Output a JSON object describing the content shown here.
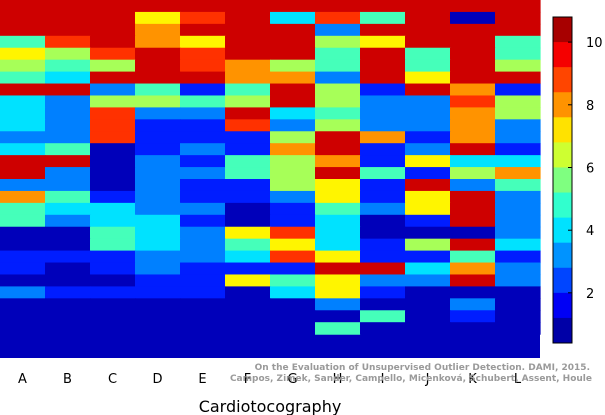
{
  "chart_data": {
    "type": "heatmap",
    "title": "",
    "xlabel": "Cardiotocography",
    "ylabel": "",
    "categories": [
      "A",
      "B",
      "C",
      "D",
      "E",
      "F",
      "G",
      "H",
      "I",
      "J",
      "K",
      "L"
    ],
    "colorbar": {
      "min": 0.4,
      "max": 10.8,
      "ticks": [
        2,
        4,
        6,
        8,
        10
      ],
      "colormap": "jet"
    },
    "citation": [
      "On the Evaluation of Unsupervised Outlier Detection. DAMI, 2015.",
      "Campos, Zimek, Sander, Campello, Micenková, Schubert, Assent, Houle"
    ],
    "rows": 28,
    "values": [
      [
        10,
        10,
        10,
        10,
        10,
        10,
        10,
        10,
        10,
        10,
        10,
        10
      ],
      [
        10,
        10,
        10,
        7,
        9,
        10,
        4,
        9,
        5,
        10,
        1,
        10
      ],
      [
        10,
        10,
        10,
        8,
        10,
        10,
        10,
        3,
        10,
        10,
        10,
        10
      ],
      [
        5,
        9,
        10,
        8,
        7,
        10,
        10,
        6,
        7,
        10,
        10,
        5
      ],
      [
        7,
        6,
        9,
        10,
        9,
        10,
        10,
        5,
        10,
        5,
        10,
        5
      ],
      [
        6,
        5,
        6,
        10,
        9,
        8,
        6,
        5,
        10,
        5,
        10,
        6
      ],
      [
        5,
        4,
        10,
        10,
        10,
        8,
        8,
        3,
        10,
        7,
        10,
        10
      ],
      [
        10,
        10,
        3,
        5,
        2,
        5,
        10,
        6,
        2,
        10,
        8,
        2
      ],
      [
        4,
        3,
        6,
        6,
        5,
        6,
        10,
        6,
        3,
        3,
        9,
        6
      ],
      [
        4,
        3,
        9,
        3,
        3,
        10,
        4,
        5,
        3,
        3,
        8,
        6
      ],
      [
        4,
        3,
        9,
        2,
        2,
        9,
        3,
        6,
        3,
        3,
        8,
        3
      ],
      [
        3,
        3,
        9,
        2,
        2,
        2,
        6,
        10,
        8,
        2,
        8,
        3
      ],
      [
        4,
        5,
        1,
        2,
        3,
        2,
        8,
        10,
        2,
        3,
        10,
        2
      ],
      [
        10,
        10,
        1,
        3,
        2,
        5,
        6,
        8,
        2,
        7,
        4,
        4
      ],
      [
        10,
        3,
        1,
        3,
        3,
        5,
        6,
        10,
        5,
        2,
        6,
        8
      ],
      [
        3,
        3,
        1,
        3,
        2,
        2,
        6,
        7,
        2,
        10,
        3,
        5
      ],
      [
        8,
        5,
        2,
        3,
        2,
        2,
        3,
        7,
        2,
        7,
        10,
        3
      ],
      [
        5,
        4,
        4,
        3,
        3,
        1,
        2,
        5,
        3,
        7,
        10,
        3
      ],
      [
        5,
        3,
        4,
        4,
        2,
        1,
        2,
        4,
        1,
        2,
        10,
        3
      ],
      [
        1,
        1,
        5,
        4,
        3,
        7,
        9,
        4,
        1,
        1,
        1,
        3
      ],
      [
        1,
        1,
        5,
        4,
        3,
        5,
        7,
        4,
        2,
        6,
        10,
        4
      ],
      [
        2,
        2,
        2,
        3,
        3,
        4,
        9,
        7,
        2,
        2,
        5,
        2
      ],
      [
        2,
        1,
        2,
        3,
        2,
        2,
        2,
        10,
        10,
        4,
        8,
        3
      ],
      [
        1,
        1,
        1,
        2,
        2,
        7,
        5,
        7,
        3,
        3,
        10,
        3
      ],
      [
        3,
        2,
        2,
        2,
        2,
        1,
        4,
        7,
        2,
        1,
        1,
        1
      ],
      [
        1,
        1,
        1,
        1,
        1,
        1,
        1,
        3,
        1,
        1,
        3,
        1
      ],
      [
        1,
        1,
        1,
        1,
        1,
        1,
        1,
        1,
        5,
        1,
        2,
        1
      ],
      [
        1,
        1,
        1,
        1,
        1,
        1,
        1,
        5,
        1,
        1,
        1,
        1
      ]
    ],
    "notes_rows_bottom": "additional rows below are uniform dark blue"
  }
}
